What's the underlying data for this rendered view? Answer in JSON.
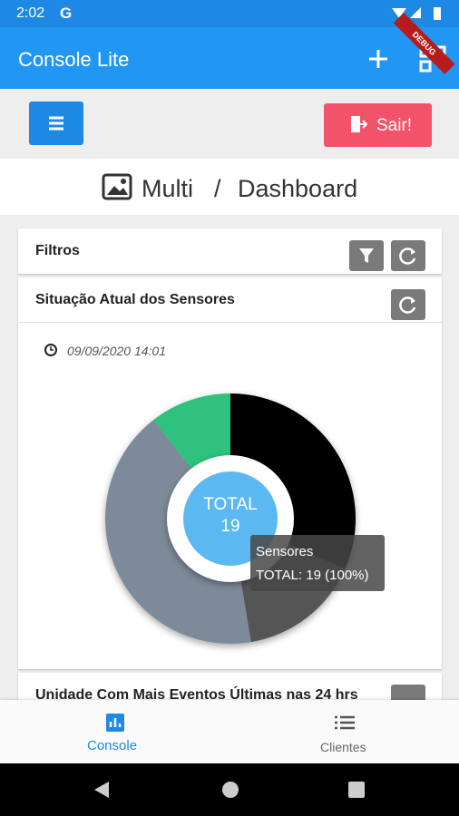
{
  "status_bar": {
    "time": "2:02",
    "app_icon": "G",
    "banner": "DEBUG"
  },
  "app_bar": {
    "title": "Console Lite"
  },
  "toolbar": {
    "logout": "Sair!"
  },
  "breadcrumb": {
    "first": "Multi",
    "separator": "/",
    "second": "Dashboard"
  },
  "filters_card": {
    "title": "Filtros"
  },
  "sensors_card": {
    "title": "Situação Atual dos Sensores",
    "date": "09/09/2020 14:01",
    "chart_data": {
      "type": "pie",
      "values": [
        6,
        3,
        8,
        2
      ],
      "colors": [
        "#050505",
        "#555555",
        "#7d8a99",
        "#2ec27e"
      ],
      "center_label": "TOTAL",
      "center_value": "19",
      "tooltip": {
        "title": "Sensores",
        "text": "TOTAL: 19 (100%)"
      }
    }
  },
  "events_card": {
    "title": "Unidade Com Mais Eventos Últimas nas 24 hrs"
  },
  "bottom_nav": {
    "items": [
      "Console",
      "Clientes"
    ]
  }
}
